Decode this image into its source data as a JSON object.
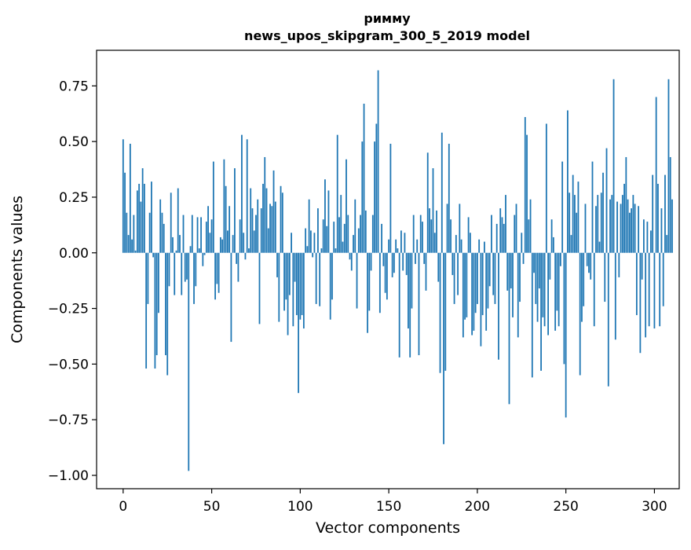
{
  "chart_data": {
    "type": "bar",
    "title_line1": "римму",
    "title_line2": "news_upos_skipgram_300_5_2019 model",
    "xlabel": "Vector components",
    "ylabel": "Components values",
    "xlim": [
      -15,
      314
    ],
    "ylim": [
      -1.06,
      0.91
    ],
    "xticks": [
      {
        "value": 0,
        "label": "0"
      },
      {
        "value": 50,
        "label": "50"
      },
      {
        "value": 100,
        "label": "100"
      },
      {
        "value": 150,
        "label": "150"
      },
      {
        "value": 200,
        "label": "200"
      },
      {
        "value": 250,
        "label": "250"
      },
      {
        "value": 300,
        "label": "300"
      }
    ],
    "yticks": [
      {
        "value": 0.75,
        "label": "0.75"
      },
      {
        "value": 0.5,
        "label": "0.50"
      },
      {
        "value": 0.25,
        "label": "0.25"
      },
      {
        "value": 0.0,
        "label": "0.00"
      },
      {
        "value": -0.25,
        "label": "−0.25"
      },
      {
        "value": -0.5,
        "label": "−0.50"
      },
      {
        "value": -0.75,
        "label": "−0.75"
      },
      {
        "value": -1.0,
        "label": "−1.00"
      }
    ],
    "bar_color": "#1f77b4",
    "values": [
      0.51,
      0.36,
      0.18,
      0.08,
      0.49,
      0.06,
      0.17,
      0.01,
      0.28,
      0.31,
      0.23,
      0.38,
      0.31,
      -0.52,
      -0.23,
      0.18,
      0.32,
      -0.02,
      -0.52,
      -0.46,
      -0.27,
      0.24,
      0.18,
      0.13,
      -0.46,
      -0.55,
      -0.15,
      0.27,
      0.07,
      -0.19,
      0.01,
      0.29,
      0.08,
      -0.19,
      0.17,
      -0.13,
      -0.12,
      -0.98,
      0.03,
      0.17,
      -0.23,
      -0.15,
      0.16,
      0.02,
      0.16,
      -0.06,
      -0.01,
      0.14,
      0.21,
      0.09,
      0.15,
      0.41,
      -0.21,
      -0.14,
      -0.18,
      0.07,
      0.06,
      0.42,
      0.3,
      0.1,
      0.21,
      -0.4,
      0.08,
      0.38,
      -0.05,
      -0.13,
      0.15,
      0.53,
      0.09,
      -0.03,
      0.51,
      0.02,
      0.29,
      0.2,
      0.1,
      0.17,
      0.24,
      -0.32,
      0.2,
      0.31,
      0.43,
      0.29,
      0.11,
      0.22,
      0.21,
      0.37,
      0.23,
      -0.11,
      -0.31,
      0.3,
      0.27,
      -0.26,
      -0.21,
      -0.37,
      -0.19,
      0.09,
      -0.33,
      -0.13,
      -0.28,
      -0.63,
      -0.3,
      -0.28,
      -0.34,
      0.11,
      0.03,
      0.24,
      0.1,
      -0.02,
      0.09,
      -0.23,
      0.2,
      -0.24,
      0.02,
      0.15,
      0.33,
      0.12,
      0.28,
      -0.3,
      -0.21,
      0.14,
      0.02,
      0.53,
      0.16,
      0.26,
      0.05,
      0.13,
      0.42,
      0.17,
      -0.03,
      -0.08,
      0.08,
      0.24,
      -0.25,
      0.11,
      0.17,
      0.5,
      0.67,
      0.19,
      -0.36,
      -0.26,
      -0.08,
      0.17,
      0.5,
      0.58,
      0.82,
      -0.27,
      0.13,
      -0.06,
      -0.18,
      -0.21,
      0.06,
      0.49,
      -0.11,
      -0.09,
      0.06,
      0.02,
      -0.47,
      0.1,
      -0.08,
      0.09,
      -0.1,
      -0.34,
      -0.47,
      -0.25,
      0.17,
      -0.05,
      0.06,
      -0.46,
      0.17,
      0.14,
      -0.05,
      -0.17,
      0.45,
      0.2,
      0.15,
      0.38,
      0.09,
      0.19,
      -0.13,
      -0.54,
      0.54,
      -0.86,
      -0.53,
      0.22,
      0.49,
      0.15,
      -0.1,
      -0.23,
      0.08,
      -0.19,
      0.22,
      0.06,
      -0.38,
      -0.3,
      -0.29,
      0.16,
      0.09,
      -0.37,
      -0.35,
      -0.27,
      -0.23,
      0.06,
      -0.42,
      -0.28,
      0.05,
      -0.35,
      -0.25,
      -0.15,
      0.17,
      -0.19,
      -0.23,
      0.13,
      -0.48,
      0.2,
      0.16,
      0.13,
      0.26,
      -0.17,
      -0.68,
      -0.16,
      -0.29,
      0.17,
      0.22,
      -0.38,
      -0.22,
      0.09,
      -0.05,
      0.61,
      0.53,
      0.15,
      0.24,
      -0.56,
      -0.09,
      -0.23,
      -0.31,
      -0.16,
      -0.53,
      -0.29,
      -0.33,
      0.58,
      -0.37,
      -0.12,
      0.15,
      0.07,
      -0.35,
      -0.26,
      -0.33,
      -0.06,
      0.41,
      -0.5,
      -0.74,
      0.64,
      0.27,
      0.08,
      0.35,
      0.26,
      0.18,
      0.32,
      -0.55,
      -0.31,
      -0.24,
      0.22,
      -0.06,
      -0.09,
      -0.12,
      0.41,
      -0.33,
      0.21,
      0.26,
      0.05,
      0.27,
      0.36,
      -0.22,
      0.47,
      -0.6,
      0.24,
      0.26,
      0.78,
      -0.39,
      0.23,
      -0.11,
      0.22,
      0.26,
      0.31,
      0.43,
      0.24,
      0.18,
      0.2,
      0.26,
      0.22,
      -0.28,
      0.21,
      -0.45,
      -0.12,
      0.15,
      -0.38,
      0.14,
      -0.33,
      0.1,
      0.35,
      -0.34,
      0.7,
      0.31,
      -0.33,
      0.2,
      -0.24,
      0.35,
      0.08,
      0.78,
      0.43,
      0.24
    ]
  }
}
